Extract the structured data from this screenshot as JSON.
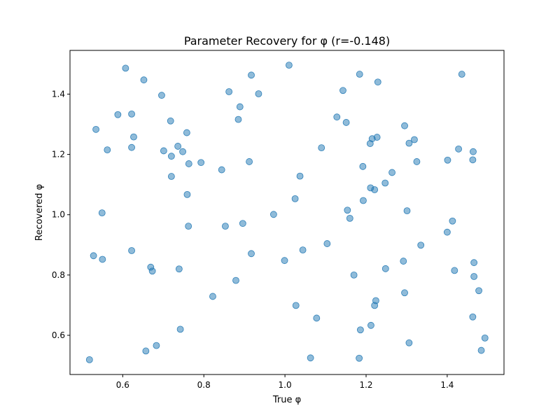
{
  "chart_data": {
    "type": "scatter",
    "title": "Parameter Recovery for φ (r=-0.148)",
    "xlabel": "True φ",
    "ylabel": "Recovered φ",
    "xlim": [
      0.47,
      1.54
    ],
    "ylim": [
      0.47,
      1.545
    ],
    "xticks": [
      0.6,
      0.8,
      1.0,
      1.2,
      1.4
    ],
    "xtick_labels": [
      "0.6",
      "0.8",
      "1.0",
      "1.2",
      "1.4"
    ],
    "yticks": [
      0.6,
      0.8,
      1.0,
      1.2,
      1.4
    ],
    "ytick_labels": [
      "0.6",
      "0.8",
      "1.0",
      "1.2",
      "1.4"
    ],
    "grid": false,
    "marker_color": "#1f77b4",
    "marker_alpha": 0.5,
    "points": [
      [
        0.607,
        1.486
      ],
      [
        1.01,
        1.496
      ],
      [
        0.652,
        1.447
      ],
      [
        0.917,
        1.463
      ],
      [
        1.184,
        1.466
      ],
      [
        1.436,
        1.466
      ],
      [
        1.229,
        1.44
      ],
      [
        0.862,
        1.408
      ],
      [
        0.935,
        1.401
      ],
      [
        1.143,
        1.412
      ],
      [
        0.696,
        1.396
      ],
      [
        0.889,
        1.358
      ],
      [
        0.588,
        1.332
      ],
      [
        0.622,
        1.334
      ],
      [
        1.128,
        1.324
      ],
      [
        0.718,
        1.311
      ],
      [
        0.885,
        1.316
      ],
      [
        1.151,
        1.306
      ],
      [
        0.534,
        1.283
      ],
      [
        1.295,
        1.295
      ],
      [
        0.758,
        1.272
      ],
      [
        0.627,
        1.258
      ],
      [
        1.227,
        1.257
      ],
      [
        1.215,
        1.252
      ],
      [
        1.319,
        1.249
      ],
      [
        0.736,
        1.227
      ],
      [
        1.21,
        1.236
      ],
      [
        1.306,
        1.237
      ],
      [
        0.562,
        1.215
      ],
      [
        0.622,
        1.223
      ],
      [
        0.701,
        1.212
      ],
      [
        1.09,
        1.222
      ],
      [
        1.428,
        1.218
      ],
      [
        0.748,
        1.209
      ],
      [
        1.464,
        1.209
      ],
      [
        0.72,
        1.194
      ],
      [
        1.401,
        1.181
      ],
      [
        1.463,
        1.182
      ],
      [
        0.763,
        1.169
      ],
      [
        0.793,
        1.173
      ],
      [
        0.912,
        1.176
      ],
      [
        1.325,
        1.176
      ],
      [
        1.192,
        1.16
      ],
      [
        0.844,
        1.149
      ],
      [
        1.264,
        1.14
      ],
      [
        0.72,
        1.127
      ],
      [
        1.037,
        1.128
      ],
      [
        1.247,
        1.105
      ],
      [
        1.211,
        1.089
      ],
      [
        1.221,
        1.083
      ],
      [
        0.759,
        1.067
      ],
      [
        1.025,
        1.053
      ],
      [
        1.193,
        1.047
      ],
      [
        1.154,
        1.015
      ],
      [
        1.301,
        1.013
      ],
      [
        0.549,
        1.006
      ],
      [
        0.972,
        1.001
      ],
      [
        1.16,
        0.988
      ],
      [
        1.413,
        0.979
      ],
      [
        0.896,
        0.971
      ],
      [
        0.762,
        0.962
      ],
      [
        0.853,
        0.962
      ],
      [
        1.4,
        0.942
      ],
      [
        1.104,
        0.904
      ],
      [
        1.335,
        0.899
      ],
      [
        1.044,
        0.883
      ],
      [
        0.622,
        0.881
      ],
      [
        0.917,
        0.871
      ],
      [
        0.528,
        0.864
      ],
      [
        0.55,
        0.852
      ],
      [
        0.999,
        0.848
      ],
      [
        1.292,
        0.846
      ],
      [
        1.466,
        0.841
      ],
      [
        0.669,
        0.826
      ],
      [
        0.739,
        0.82
      ],
      [
        1.248,
        0.821
      ],
      [
        0.673,
        0.813
      ],
      [
        1.418,
        0.815
      ],
      [
        1.17,
        0.8
      ],
      [
        1.466,
        0.795
      ],
      [
        0.879,
        0.782
      ],
      [
        1.478,
        0.748
      ],
      [
        1.295,
        0.741
      ],
      [
        0.822,
        0.729
      ],
      [
        1.224,
        0.715
      ],
      [
        1.027,
        0.699
      ],
      [
        1.221,
        0.699
      ],
      [
        1.463,
        0.661
      ],
      [
        1.078,
        0.657
      ],
      [
        1.212,
        0.633
      ],
      [
        0.742,
        0.62
      ],
      [
        1.186,
        0.618
      ],
      [
        1.493,
        0.591
      ],
      [
        1.306,
        0.575
      ],
      [
        0.683,
        0.566
      ],
      [
        0.657,
        0.548
      ],
      [
        1.484,
        0.55
      ],
      [
        1.063,
        0.525
      ],
      [
        1.183,
        0.524
      ],
      [
        0.518,
        0.519
      ]
    ]
  }
}
